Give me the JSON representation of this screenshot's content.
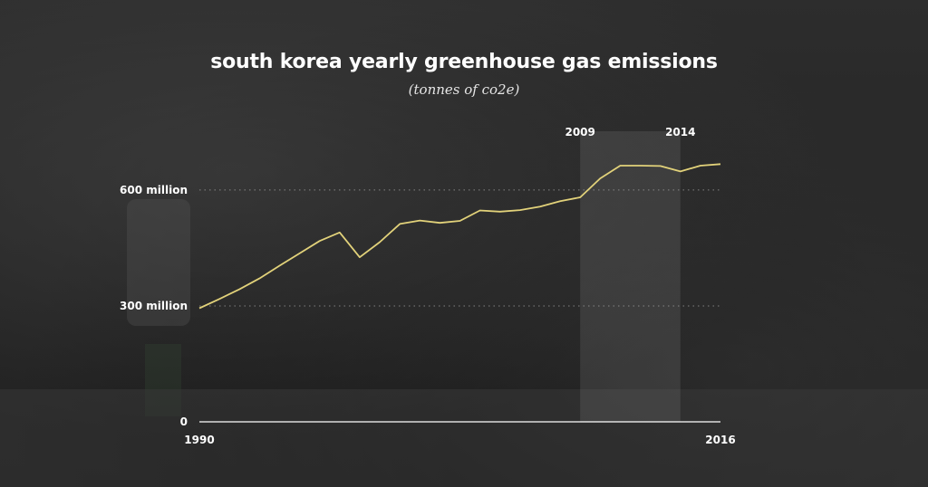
{
  "chart_data": {
    "type": "line",
    "title": "south korea yearly greenhouse gas emissions",
    "subtitle": "(tonnes of co2e)",
    "xlabel": "",
    "ylabel": "",
    "xlim": [
      1990,
      2016
    ],
    "ylim": [
      0,
      670
    ],
    "x_tick_labels": [
      "1990",
      "2016"
    ],
    "y_ticks": [
      {
        "value": 0,
        "label": "0"
      },
      {
        "value": 300,
        "label": "300 million"
      },
      {
        "value": 600,
        "label": "600 million"
      }
    ],
    "highlight_range": {
      "start": 2009,
      "end": 2014,
      "start_label": "2009",
      "end_label": "2014"
    },
    "colors": {
      "line": "#e2d27a",
      "axis": "#ffffff",
      "grid": "#9a9a9a",
      "highlight": "#ffffff"
    },
    "grid": "dotted horizontal",
    "legend": "none",
    "series": [
      {
        "x": [
          1990,
          1991,
          1992,
          1993,
          1994,
          1995,
          1996,
          1997,
          1998,
          1999,
          2000,
          2001,
          2002,
          2003,
          2004,
          2005,
          2006,
          2007,
          2008,
          2009,
          2010,
          2011,
          2012,
          2013,
          2014,
          2015,
          2016
        ],
        "values": [
          294,
          318,
          343,
          371,
          404,
          436,
          468,
          490,
          426,
          465,
          512,
          521,
          515,
          520,
          547,
          544,
          548,
          557,
          571,
          581,
          630,
          663,
          663,
          662,
          648,
          663,
          667
        ]
      }
    ]
  }
}
